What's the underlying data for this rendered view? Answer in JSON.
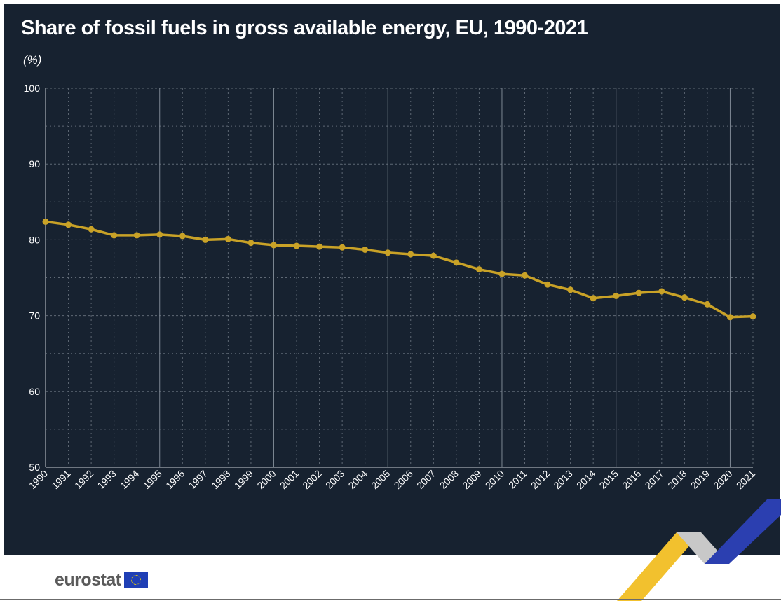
{
  "header": {
    "title": "Share of fossil fuels in gross available energy, EU, 1990-2021",
    "unit": "(%)"
  },
  "branding": {
    "logo_text": "eurostat"
  },
  "colors": {
    "background": "#172230",
    "line": "#c9a227",
    "grid": "#5f6975",
    "text": "#ffffff"
  },
  "chart_data": {
    "type": "line",
    "title": "Share of fossil fuels in gross available energy, EU, 1990-2021",
    "subtitle": "(%)",
    "xlabel": "",
    "ylabel": "",
    "ylim": [
      50,
      100
    ],
    "yticks": [
      50,
      60,
      70,
      80,
      90,
      100
    ],
    "grid": true,
    "x": [
      "1990",
      "1991",
      "1992",
      "1993",
      "1994",
      "1995",
      "1996",
      "1997",
      "1998",
      "1999",
      "2000",
      "2001",
      "2002",
      "2003",
      "2004",
      "2005",
      "2006",
      "2007",
      "2008",
      "2009",
      "2010",
      "2011",
      "2012",
      "2013",
      "2014",
      "2015",
      "2016",
      "2017",
      "2018",
      "2019",
      "2020",
      "2021"
    ],
    "series": [
      {
        "values": [
          82.4,
          82.0,
          81.4,
          80.6,
          80.6,
          80.7,
          80.5,
          80.0,
          80.1,
          79.6,
          79.3,
          79.2,
          79.1,
          79.0,
          78.7,
          78.3,
          78.1,
          77.9,
          77.0,
          76.1,
          75.5,
          75.3,
          74.1,
          73.4,
          72.3,
          72.6,
          73.0,
          73.2,
          72.4,
          71.5,
          69.8,
          69.9
        ]
      }
    ]
  }
}
